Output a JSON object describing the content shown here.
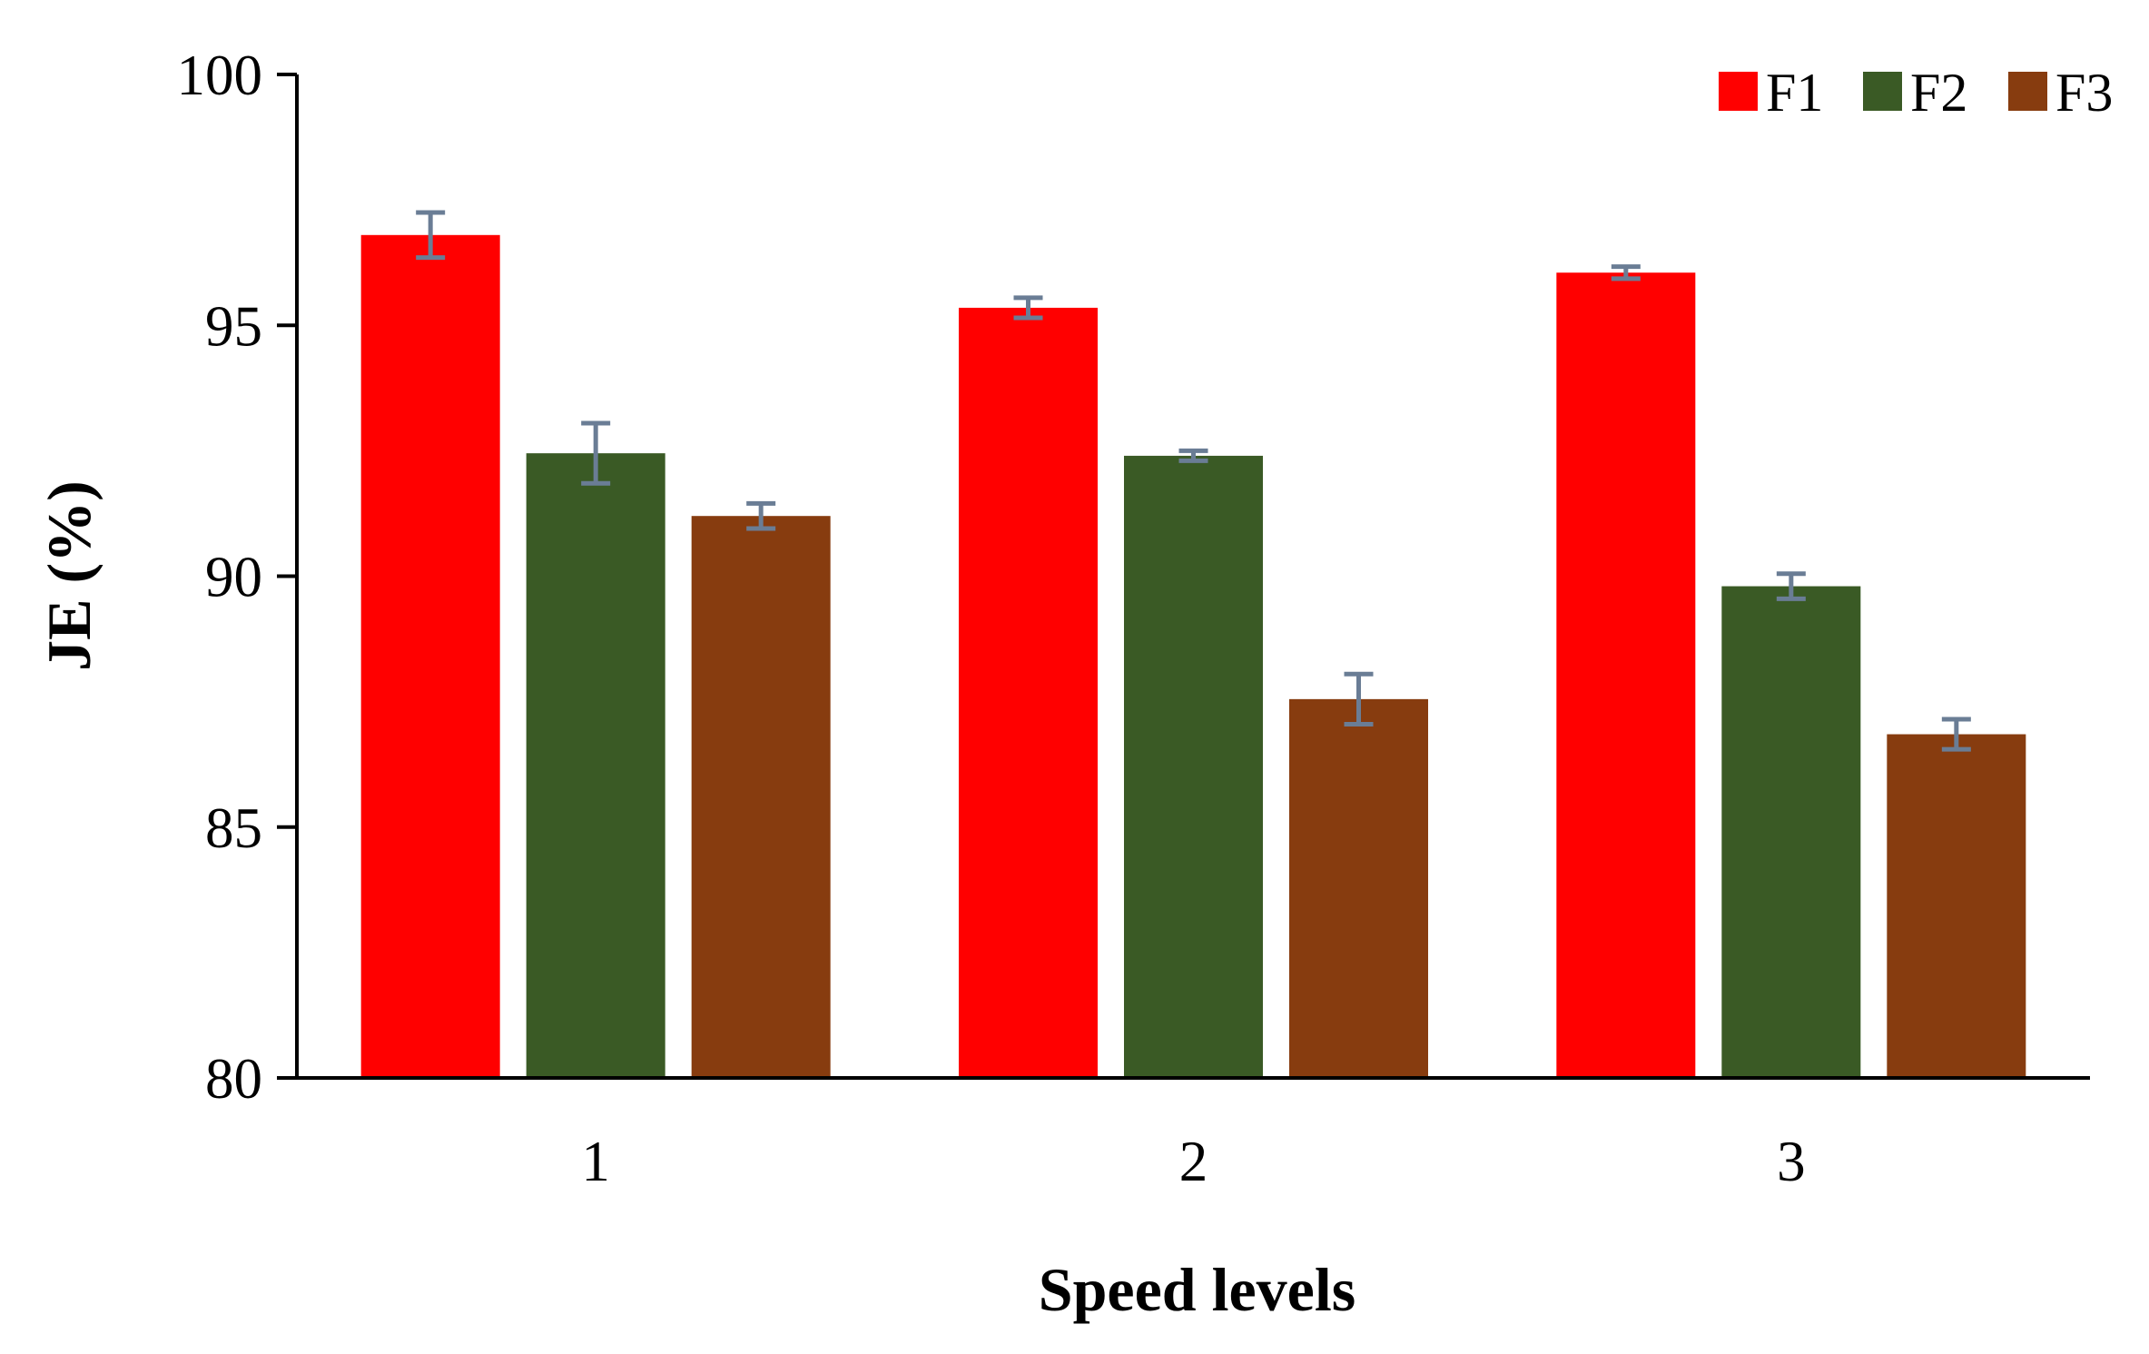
{
  "chart_data": {
    "type": "bar",
    "title": "",
    "xlabel": "Speed levels",
    "ylabel": "JE (%)",
    "ylim": [
      80,
      100
    ],
    "yticks": [
      "80",
      "85",
      "90",
      "95",
      "100"
    ],
    "categories": [
      "1",
      "2",
      "3"
    ],
    "series": [
      {
        "name": "F1",
        "color": "#ff0000",
        "values": [
          96.8,
          95.35,
          96.05
        ],
        "errors": [
          0.45,
          0.2,
          0.12
        ]
      },
      {
        "name": "F2",
        "color": "#3a5a25",
        "values": [
          92.45,
          92.4,
          89.8
        ],
        "errors": [
          0.6,
          0.1,
          0.25
        ]
      },
      {
        "name": "F3",
        "color": "#873c0f",
        "values": [
          91.2,
          87.55,
          86.85
        ],
        "errors": [
          0.25,
          0.5,
          0.3
        ]
      }
    ],
    "error_bar_color": "#6a7d95",
    "legend_position": "top-right",
    "grid": false
  }
}
